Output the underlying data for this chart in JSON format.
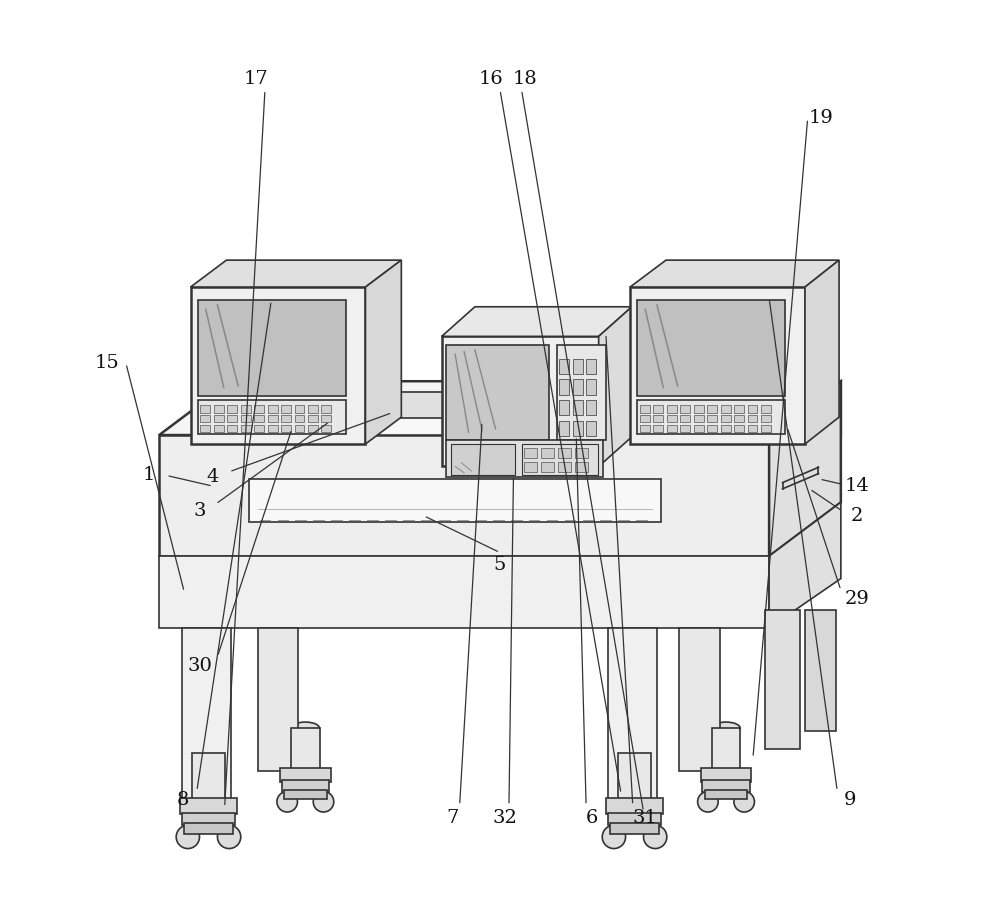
{
  "bg_color": "#ffffff",
  "line_color": "#333333",
  "lw": 1.2,
  "lw2": 1.8
}
